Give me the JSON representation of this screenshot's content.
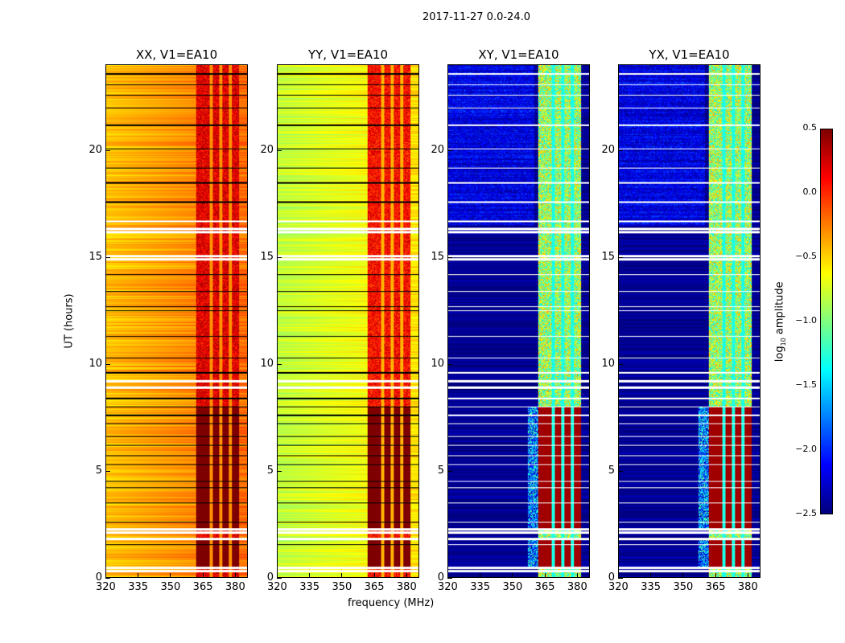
{
  "chart_data": {
    "type": "heatmap",
    "title": "2017-11-27 0.0-24.0",
    "xlabel": "frequency (MHz)",
    "ylabel": "UT (hours)",
    "xlim": [
      320,
      386
    ],
    "ylim": [
      0,
      24
    ],
    "xticks": [
      320,
      335,
      350,
      365,
      380
    ],
    "yticks": [
      0,
      5,
      10,
      15,
      20
    ],
    "colorbar": {
      "label": "log10 amplitude",
      "label_main": "log",
      "label_sub": "10",
      "label_rest": " amplitude",
      "range": [
        -2.5,
        0.5
      ],
      "ticks": [
        "0.5",
        "0.0",
        "−0.5",
        "−1.0",
        "−1.5",
        "−2.0",
        "−2.5"
      ],
      "tick_values": [
        0.5,
        0.0,
        -0.5,
        -1.0,
        -1.5,
        -2.0,
        -2.5
      ],
      "colormap": "jet"
    },
    "flagged_hours": [
      0.3,
      0.45,
      1.8,
      2.1,
      2.25,
      8.9,
      9.2,
      14.9,
      15.05,
      16.2,
      16.35,
      16.7
    ],
    "thin_gaps_hours": [
      1.55,
      2.6,
      3.5,
      4.2,
      4.5,
      5.3,
      5.7,
      6.2,
      6.6,
      7.2,
      7.6,
      8.0,
      8.4,
      9.6,
      10.3,
      11.3,
      12.5,
      12.7,
      13.4,
      14.2,
      17.6,
      18.5,
      19.2,
      20.1,
      21.2,
      22.0,
      22.6,
      23.1,
      23.6
    ],
    "strong_band_mhz": [
      362,
      382
    ],
    "band_notches_mhz": [
      369,
      373.5,
      378
    ],
    "panels": [
      {
        "title": "XX, V1=EA10",
        "baseline": -0.45,
        "band_level": 0.2,
        "strong_band_level": 0.5
      },
      {
        "title": "YY, V1=EA10",
        "baseline": -0.8,
        "band_level": 0.1,
        "strong_band_level": 0.5
      },
      {
        "title": "XY, V1=EA10",
        "baseline": -2.45,
        "band_level": -0.9,
        "strong_band_level": 0.4
      },
      {
        "title": "YX, V1=EA10",
        "baseline": -2.45,
        "band_level": -0.9,
        "strong_band_level": 0.4
      }
    ]
  }
}
